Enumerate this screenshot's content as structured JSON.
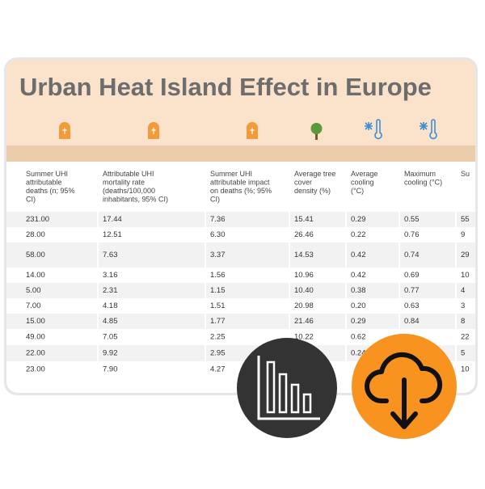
{
  "title": "Urban Heat Island Effect in Europe",
  "table": {
    "headers": [
      "Summer UHI attributable deaths (n; 95% CI)",
      "Attributable UHI mortality rate (deaths/100,000 inhabitants, 95% CI)",
      "Summer UHI attributable impact on deaths (%; 95% CI)",
      "Average tree cover density (%)",
      "Average cooling (°C)",
      "Maximum cooling (°C)",
      "Su"
    ],
    "rows": [
      [
        "231.00",
        "17.44",
        "7.36",
        "15.41",
        "0.29",
        "0.55",
        "55"
      ],
      [
        "28.00",
        "12.51",
        "6.30",
        "26.46",
        "0.22",
        "0.76",
        "9"
      ],
      [
        "58.00",
        "7.63",
        "3.37",
        "14.53",
        "0.42",
        "0.74",
        "29"
      ],
      [
        "14.00",
        "3.16",
        "1.56",
        "10.96",
        "0.42",
        "0.69",
        "10"
      ],
      [
        "5.00",
        "2.31",
        "1.15",
        "10.40",
        "0.38",
        "0.77",
        "4"
      ],
      [
        "7.00",
        "4.18",
        "1.51",
        "20.98",
        "0.20",
        "0.63",
        "3"
      ],
      [
        "15.00",
        "4.85",
        "1.77",
        "21.46",
        "0.29",
        "0.84",
        "8"
      ],
      [
        "49.00",
        "7.05",
        "2.25",
        "10.22",
        "0.62",
        null,
        "22"
      ],
      [
        "22.00",
        "9.92",
        "2.95",
        null,
        "0.24",
        null,
        "5"
      ],
      [
        "23.00",
        "7.90",
        "4.27",
        null,
        null,
        null,
        "10"
      ]
    ]
  }
}
